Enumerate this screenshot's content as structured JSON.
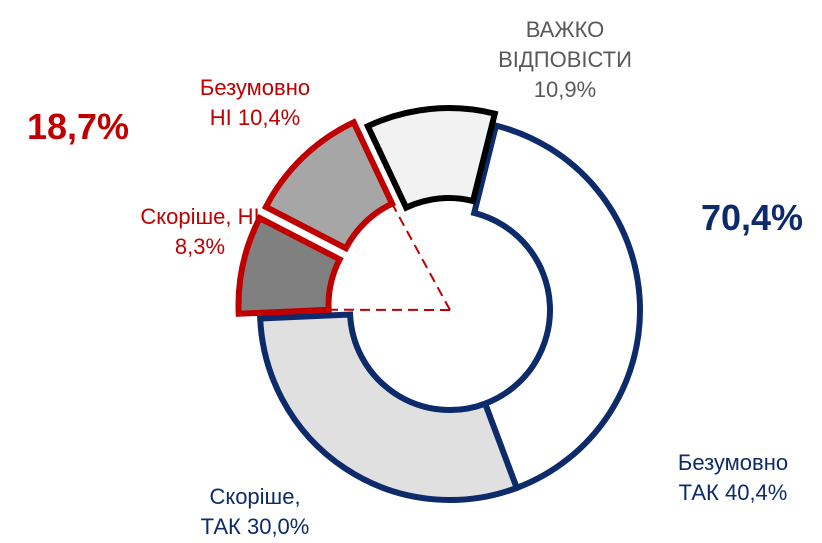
{
  "chart_data": {
    "type": "donut",
    "categories": [
      "Безумовно ТАК",
      "Скоріше, ТАК",
      "Скоріше, НІ",
      "Безумовно НІ",
      "ВАЖКО ВІДПОВІСТИ"
    ],
    "values": [
      40.4,
      30.0,
      8.3,
      10.4,
      10.9
    ],
    "value_labels": [
      "40,4%",
      "30,0%",
      "8,3%",
      "10,4%",
      "10,9%"
    ],
    "colors": [
      "#ffffff",
      "#e0e0e0",
      "#808080",
      "#a6a6a6",
      "#f2f2f2"
    ],
    "outline_colors": [
      "#0d2a6b",
      "#0d2a6b",
      "#c00000",
      "#c00000",
      "#000000"
    ],
    "label_colors": [
      "#0d2a6b",
      "#0d2a6b",
      "#c00000",
      "#c00000",
      "#595959"
    ],
    "group_labels": [
      "70,4%",
      "18,7%"
    ],
    "group_colors": [
      "#0d2a6b",
      "#c00000"
    ]
  }
}
